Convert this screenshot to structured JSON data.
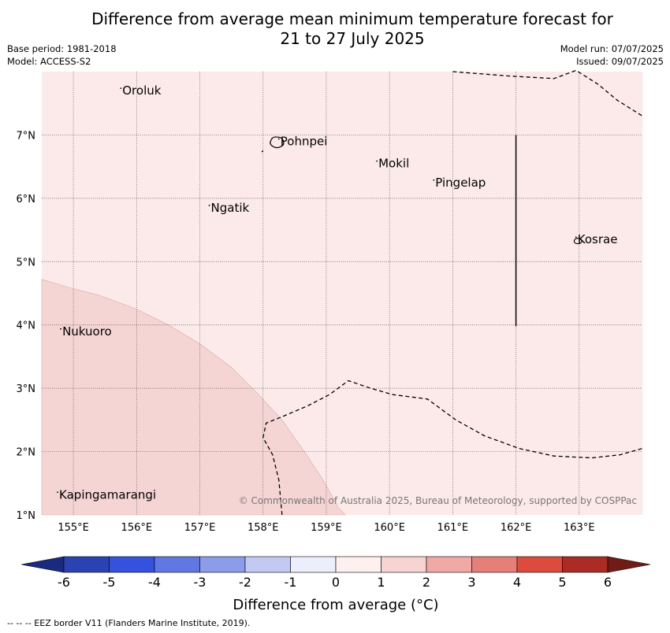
{
  "title_line1": "Difference from average mean minimum temperature forecast for",
  "title_line2": "21 to 27 July 2025",
  "base_period": "Base period: 1981-2018",
  "model": "Model: ACCESS-S2",
  "model_run": "Model run: 07/07/2025",
  "issued": "Issued: 09/07/2025",
  "copyright": "© Commonwealth of Australia 2025, Bureau of Meteorology, supported by COSPPac",
  "footer": "--  --  -- EEZ border V11 (Flanders Marine Institute, 2019).",
  "map": {
    "lon_range": [
      154.5,
      164
    ],
    "lat_range": [
      1,
      8
    ],
    "lon_ticks": [
      "155°E",
      "156°E",
      "157°E",
      "158°E",
      "159°E",
      "160°E",
      "161°E",
      "162°E",
      "163°E"
    ],
    "lat_ticks": [
      "7°N",
      "6°N",
      "5°N",
      "4°N",
      "3°N",
      "2°N",
      "1°N"
    ],
    "places": [
      {
        "name": "Oroluk",
        "lon": 155.75,
        "lat": 7.65
      },
      {
        "name": "Pohnpei",
        "lon": 158.25,
        "lat": 6.85
      },
      {
        "name": "Mokil",
        "lon": 159.8,
        "lat": 6.5
      },
      {
        "name": "Pingelap",
        "lon": 160.7,
        "lat": 6.2
      },
      {
        "name": "Ngatik",
        "lon": 157.15,
        "lat": 5.8
      },
      {
        "name": "Kosrae",
        "lon": 162.95,
        "lat": 5.3
      },
      {
        "name": "Nukuoro",
        "lon": 154.8,
        "lat": 3.85
      },
      {
        "name": "Kapingamarangi",
        "lon": 154.75,
        "lat": 1.27
      }
    ],
    "fill_colors": {
      "zero_to_one": "#fbeae9",
      "one_to_two": "#f5d5d3"
    }
  },
  "colorbar": {
    "label": "Difference from average (°C)",
    "ticks": [
      "-6",
      "-5",
      "-4",
      "-3",
      "-2",
      "-1",
      "0",
      "1",
      "2",
      "3",
      "4",
      "5",
      "6"
    ],
    "colors": [
      "#1a2a80",
      "#2a42b2",
      "#3552de",
      "#6077e4",
      "#8c9cea",
      "#c2c9f3",
      "#eceefb",
      "#fdf0ef",
      "#f7d4d2",
      "#f0a9a5",
      "#e77f79",
      "#dc4b3e",
      "#ad2b25",
      "#701b18"
    ]
  }
}
